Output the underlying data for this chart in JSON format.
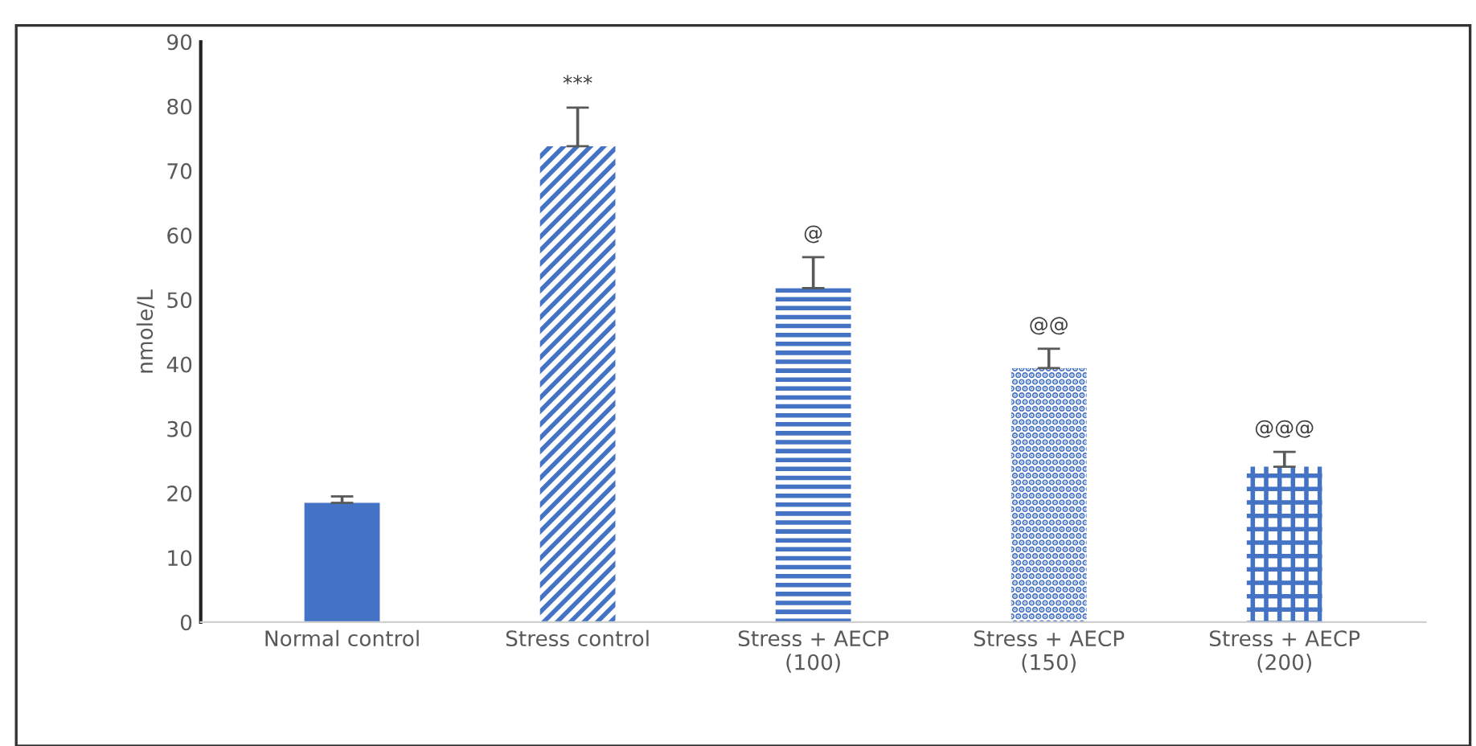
{
  "chart_data": {
    "type": "bar",
    "ylabel": "nmole/L",
    "categories": [
      "Normal control",
      "Stress control",
      "Stress + AECP\n(100)",
      "Stress + AECP\n(150)",
      "Stress + AECP\n(200)"
    ],
    "values": [
      18.5,
      73.8,
      51.8,
      39.4,
      24.1
    ],
    "errors": [
      1,
      6,
      4.8,
      3,
      2.3
    ],
    "colors": [
      "#4472c4",
      "#4472c4",
      "#4472c4",
      "#4472c4",
      "#4472c4"
    ],
    "ylim": [
      0,
      90
    ],
    "yticks": [
      0,
      10,
      20,
      30,
      40,
      50,
      60,
      70,
      80,
      90
    ],
    "grid": false,
    "value_labels": [
      null,
      "***",
      "@",
      "@@",
      "@@@"
    ]
  }
}
